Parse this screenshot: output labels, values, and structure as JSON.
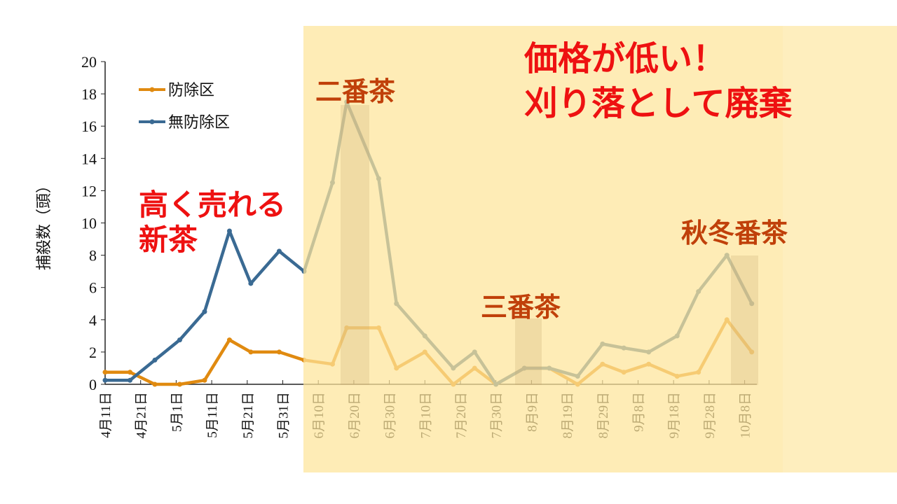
{
  "chart_data": {
    "type": "line",
    "ylabel": "捕殺数（頭）",
    "ylim": [
      0,
      20
    ],
    "yticks": [
      0,
      2,
      4,
      6,
      8,
      10,
      12,
      14,
      16,
      18,
      20
    ],
    "xtick_labels": [
      "4月11日",
      "4月21日",
      "5月1日",
      "5月11日",
      "5月21日",
      "5月31日",
      "6月10日",
      "6月20日",
      "6月30日",
      "7月10日",
      "7月20日",
      "7月30日",
      "8月9日",
      "8月19日",
      "8月29日",
      "9月8日",
      "9月18日",
      "9月28日",
      "10月8日"
    ],
    "x": [
      "4/11",
      "4/18",
      "4/25",
      "5/2",
      "5/9",
      "5/16",
      "5/22",
      "5/30",
      "6/6",
      "6/14",
      "6/18",
      "6/27",
      "7/2",
      "7/10",
      "7/18",
      "7/24",
      "7/30",
      "8/7",
      "8/14",
      "8/22",
      "8/29",
      "9/4",
      "9/11",
      "9/19",
      "9/25",
      "10/3",
      "10/10"
    ],
    "series": [
      {
        "name": "防除区",
        "color": "#e08a10",
        "values": [
          0.75,
          0.75,
          0,
          0,
          0.25,
          2.75,
          2,
          2,
          1.5,
          1.25,
          3.5,
          3.5,
          1,
          2,
          0,
          1,
          0,
          1,
          1,
          0,
          1.25,
          0.75,
          1.25,
          0.5,
          0.75,
          4,
          2
        ]
      },
      {
        "name": "無防除区",
        "color": "#3a6a93",
        "values": [
          0.25,
          0.25,
          1.5,
          2.75,
          4.5,
          9.5,
          6.25,
          8.25,
          7,
          12.5,
          17.5,
          12.75,
          5,
          3,
          1,
          2,
          0,
          1,
          1,
          0.5,
          2.5,
          2.25,
          2,
          3,
          5.75,
          8,
          5
        ]
      }
    ],
    "legend": "top-left",
    "grid": false,
    "annotations": {
      "shinsha": [
        "高く売れる",
        "新茶"
      ],
      "nibancha": "二番茶",
      "sanbancha": "三番茶",
      "shutoubancha": "秋冬番茶",
      "low_price": [
        "価格が低い！",
        "刈り落として廃棄"
      ]
    },
    "colors": {
      "highlight": "#fde49a",
      "annotation_red": "#ee1111",
      "annotation_brown": "#c0400a"
    }
  }
}
